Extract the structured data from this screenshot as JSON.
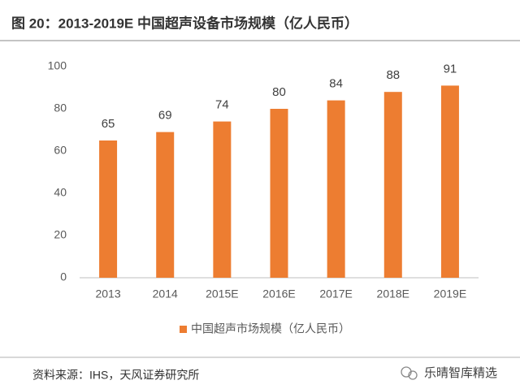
{
  "chart_data": {
    "type": "bar",
    "title": "图 20：2013-2019E 中国超声设备市场规模（亿人民币）",
    "categories": [
      "2013",
      "2014",
      "2015E",
      "2016E",
      "2017E",
      "2018E",
      "2019E"
    ],
    "series": [
      {
        "name": "中国超声市场规模（亿人民币）",
        "color": "#ed7d31",
        "values": [
          65,
          69,
          74,
          80,
          84,
          88,
          91
        ]
      }
    ],
    "ylim": [
      0,
      100
    ],
    "yticks": [
      0,
      20,
      40,
      60,
      80,
      100
    ],
    "grid": false,
    "legend": "bottom",
    "source": "资料来源：IHS，天风证券研究所",
    "watermark": "乐晴智库精选"
  }
}
